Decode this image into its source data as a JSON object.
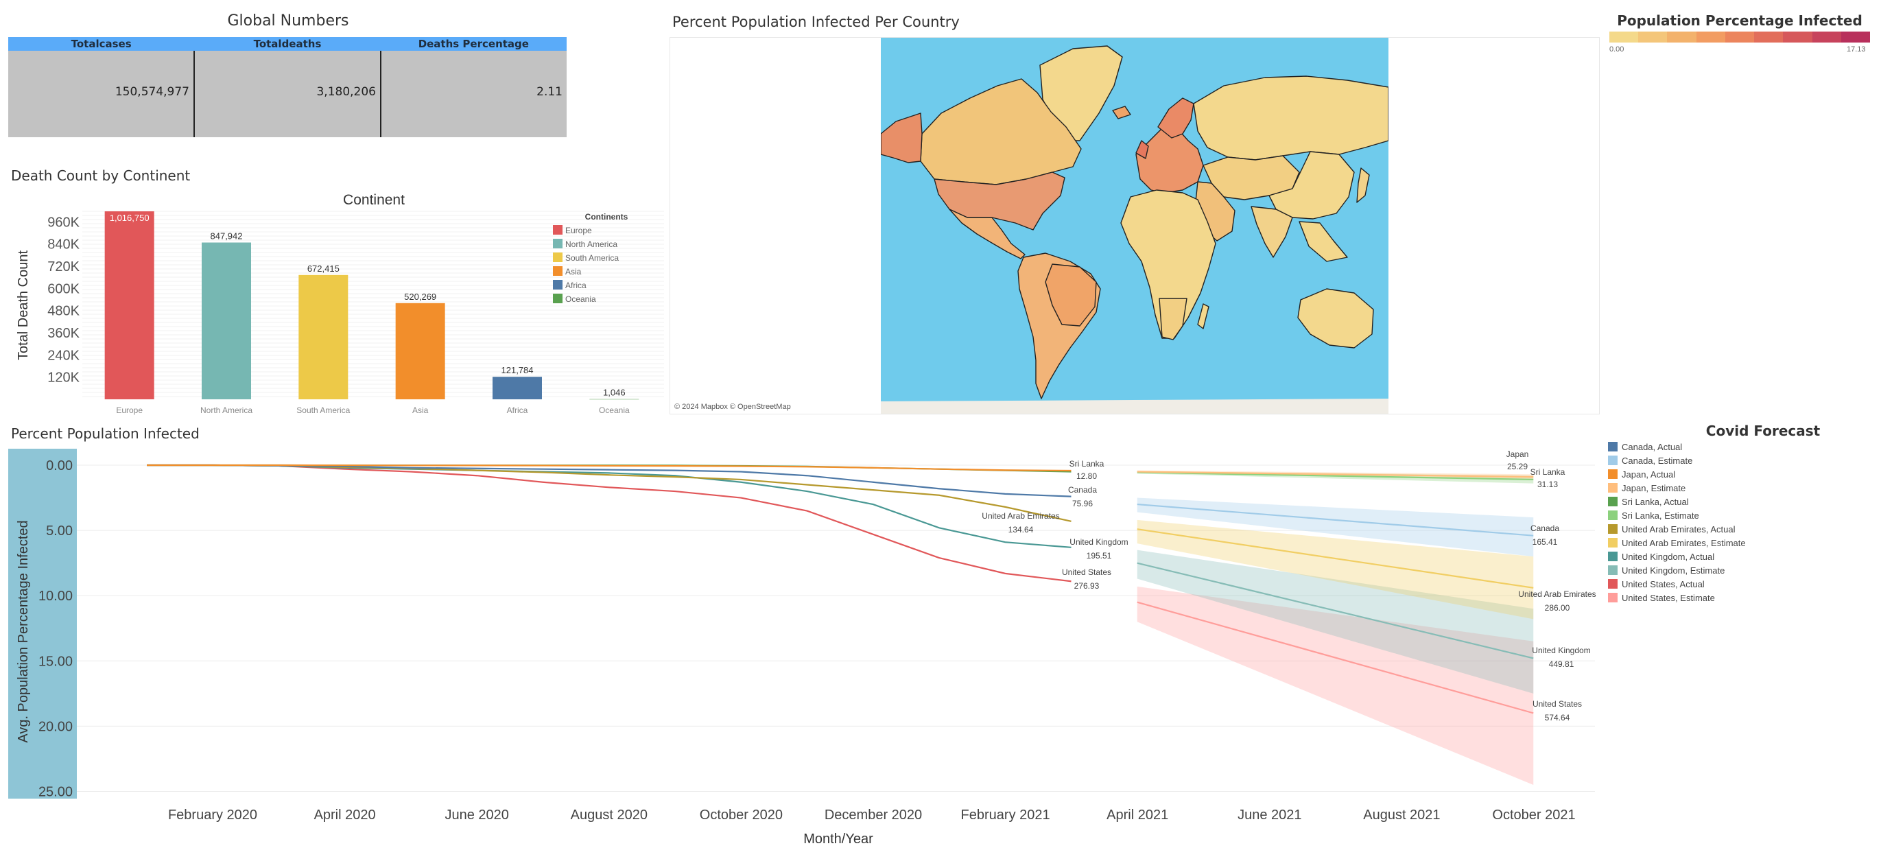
{
  "global_numbers": {
    "title": "Global Numbers",
    "headers": [
      "Totalcases",
      "Totaldeaths",
      "Deaths Percentage"
    ],
    "values": [
      "150,574,977",
      "3,180,206",
      "2.11"
    ]
  },
  "map": {
    "title": "Percent Population Infected Per Country",
    "attribution": "© 2024 Mapbox © OpenStreetMap",
    "ocean_color": "#6fcbec",
    "legend": {
      "title": "Population Percentage Infected",
      "min_label": "0.00",
      "max_label": "17.13",
      "colors": [
        "#f4d98a",
        "#f4c67a",
        "#f3b26c",
        "#f29c62",
        "#ec855d",
        "#e26e5b",
        "#d6585b",
        "#c7435c",
        "#b8305c"
      ]
    }
  },
  "death_section": {
    "title": "Death Count by Continent"
  },
  "forecast_section": {
    "title": "Percent Population Infected"
  },
  "forecast_legend": {
    "title": "Covid Forecast",
    "items": [
      {
        "label": "Canada, Actual",
        "color": "#4e79a7"
      },
      {
        "label": "Canada, Estimate",
        "color": "#a0cbe8"
      },
      {
        "label": "Japan, Actual",
        "color": "#f28e2b"
      },
      {
        "label": "Japan, Estimate",
        "color": "#ffbe7d"
      },
      {
        "label": "Sri Lanka, Actual",
        "color": "#59a14f"
      },
      {
        "label": "Sri Lanka, Estimate",
        "color": "#8cd17d"
      },
      {
        "label": "United Arab Emirates, Actual",
        "color": "#b6992d"
      },
      {
        "label": "United Arab Emirates, Estimate",
        "color": "#f1ce63"
      },
      {
        "label": "United Kingdom, Actual",
        "color": "#499894"
      },
      {
        "label": "United Kingdom, Estimate",
        "color": "#86bcb6"
      },
      {
        "label": "United States, Actual",
        "color": "#e15759"
      },
      {
        "label": "United States, Estimate",
        "color": "#ff9d9a"
      }
    ]
  },
  "chart_data": [
    {
      "type": "bar",
      "title": "Continent",
      "ylabel": "Total Death Count",
      "xlabel": "",
      "categories": [
        "Europe",
        "North America",
        "South America",
        "Asia",
        "Africa",
        "Oceania"
      ],
      "values": [
        1016750,
        847942,
        672415,
        520269,
        121784,
        1046
      ],
      "value_labels": [
        "1,016,750",
        "847,942",
        "672,415",
        "520,269",
        "121,784",
        "1,046"
      ],
      "colors": [
        "#e15759",
        "#76b7b2",
        "#edc948",
        "#f28e2b",
        "#4e79a7",
        "#59a14f"
      ],
      "ylim": [
        0,
        1016750
      ],
      "yticks": [
        120000,
        240000,
        360000,
        480000,
        600000,
        720000,
        840000,
        960000
      ],
      "ytick_labels": [
        "120K",
        "240K",
        "360K",
        "480K",
        "600K",
        "720K",
        "840K",
        "960K"
      ],
      "legend": {
        "title": "Continents",
        "placement": "top-right",
        "entries": [
          "Europe",
          "North America",
          "South America",
          "Asia",
          "Africa",
          "Oceania"
        ]
      }
    },
    {
      "type": "line",
      "title": "",
      "xlabel": "Month/Year",
      "ylabel": "Avg. Population Percentage Infected",
      "y_reversed": true,
      "ylim": [
        0,
        25.5
      ],
      "yticks": [
        0,
        5,
        10,
        15,
        20,
        25
      ],
      "ytick_labels": [
        "0.00",
        "5.00",
        "10.00",
        "15.00",
        "20.00",
        "25.00"
      ],
      "xticks": [
        "February 2020",
        "April 2020",
        "June 2020",
        "August 2020",
        "October 2020",
        "December 2020",
        "February 2021",
        "April 2021",
        "June 2021",
        "August 2021",
        "October 2021"
      ],
      "x_actual": [
        "2020-01",
        "2020-02",
        "2020-03",
        "2020-04",
        "2020-05",
        "2020-06",
        "2020-07",
        "2020-08",
        "2020-09",
        "2020-10",
        "2020-11",
        "2020-12",
        "2021-01",
        "2021-02",
        "2021-03"
      ],
      "x_estimate": [
        "2021-04",
        "2021-10"
      ],
      "series": [
        {
          "name": "United States",
          "color": "#e15759",
          "est_color": "#ff9d9a",
          "actual": [
            0,
            0,
            0.05,
            0.3,
            0.5,
            0.8,
            1.3,
            1.7,
            2.0,
            2.5,
            3.5,
            5.3,
            7.1,
            8.3,
            8.9
          ],
          "estimate": [
            10.5,
            19.0
          ],
          "band": [
            [
              9.3,
              12.0
            ],
            [
              13.5,
              24.5
            ]
          ],
          "label_actual": [
            "United States",
            "276.93"
          ],
          "label_estimate": [
            "United States",
            "574.64"
          ]
        },
        {
          "name": "United Kingdom",
          "color": "#499894",
          "est_color": "#86bcb6",
          "actual": [
            0,
            0,
            0.05,
            0.2,
            0.3,
            0.4,
            0.5,
            0.6,
            0.8,
            1.3,
            2.0,
            3.0,
            4.8,
            5.9,
            6.3
          ],
          "estimate": [
            7.5,
            14.8
          ],
          "band": [
            [
              6.5,
              8.7
            ],
            [
              11.0,
              17.5
            ]
          ],
          "label_actual": [
            "United Kingdom",
            "195.51"
          ],
          "label_estimate": [
            "United Kingdom",
            "449.81"
          ]
        },
        {
          "name": "United Arab Emirates",
          "color": "#b6992d",
          "est_color": "#f1ce63",
          "actual": [
            0,
            0,
            0.05,
            0.15,
            0.25,
            0.4,
            0.55,
            0.75,
            0.9,
            1.1,
            1.5,
            1.9,
            2.3,
            3.2,
            4.3
          ],
          "estimate": [
            4.9,
            9.4
          ],
          "band": [
            [
              4.2,
              6.0
            ],
            [
              7.0,
              11.8
            ]
          ],
          "label_actual": [
            "United Arab Emirates",
            "134.64"
          ],
          "label_estimate": [
            "United Arab Emirates",
            "286.00"
          ]
        },
        {
          "name": "Canada",
          "color": "#4e79a7",
          "est_color": "#a0cbe8",
          "actual": [
            0,
            0,
            0.05,
            0.1,
            0.2,
            0.25,
            0.3,
            0.35,
            0.4,
            0.5,
            0.8,
            1.3,
            1.8,
            2.2,
            2.4
          ],
          "estimate": [
            3.0,
            5.4
          ],
          "band": [
            [
              2.5,
              3.6
            ],
            [
              4.0,
              7.0
            ]
          ],
          "label_actual": [
            "Canada",
            "75.96"
          ],
          "label_estimate": [
            "Canada",
            "165.41"
          ]
        },
        {
          "name": "Sri Lanka",
          "color": "#59a14f",
          "est_color": "#8cd17d",
          "actual": [
            0,
            0,
            0,
            0.01,
            0.01,
            0.01,
            0.01,
            0.01,
            0.02,
            0.05,
            0.1,
            0.2,
            0.3,
            0.4,
            0.5
          ],
          "estimate": [
            0.55,
            1.1
          ],
          "band": [
            [
              0.45,
              0.65
            ],
            [
              0.8,
              1.4
            ]
          ],
          "label_actual": [
            "Sri Lanka",
            "12.80"
          ],
          "label_estimate": [
            "Sri Lanka",
            "31.13"
          ]
        },
        {
          "name": "Japan",
          "color": "#f28e2b",
          "est_color": "#ffbe7d",
          "actual": [
            0,
            0,
            0,
            0.01,
            0.02,
            0.02,
            0.03,
            0.05,
            0.06,
            0.08,
            0.12,
            0.2,
            0.3,
            0.38,
            0.42
          ],
          "estimate": [
            0.5,
            0.9
          ],
          "band": [
            [
              0.4,
              0.6
            ],
            [
              0.7,
              1.1
            ]
          ],
          "label_actual": [],
          "label_estimate": [
            "Japan",
            "25.29"
          ]
        }
      ]
    }
  ]
}
